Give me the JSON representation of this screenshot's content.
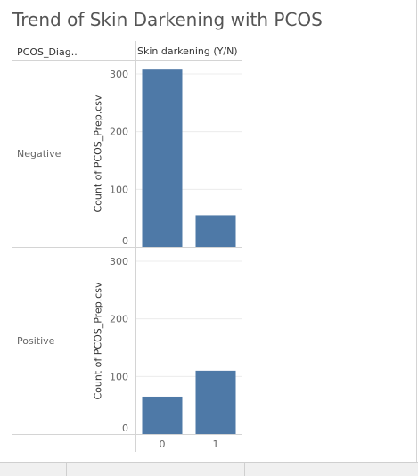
{
  "title": "Trend of Skin Darkening with PCOS",
  "header": {
    "row_dimension": "PCOS_Diag..",
    "column_dimension": "Skin darkening (Y/N)"
  },
  "panels": [
    {
      "label": "Negative",
      "axis_title": "Count of PCOS_Prep.csv"
    },
    {
      "label": "Positive",
      "axis_title": "Count of PCOS_Prep.csv"
    }
  ],
  "colors": {
    "bar": "#4e79a7",
    "gridline": "#ececec",
    "border": "#d4d4d4"
  },
  "chart_data": {
    "type": "bar",
    "title": "Trend of Skin Darkening with PCOS",
    "xlabel": "Skin darkening (Y/N)",
    "ylabel": "Count of PCOS_Prep.csv",
    "categories": [
      "0",
      "1"
    ],
    "ylim": [
      0,
      300
    ],
    "yticks": [
      0,
      100,
      200,
      300
    ],
    "panels": [
      {
        "name": "Negative",
        "values": [
          309,
          55
        ]
      },
      {
        "name": "Positive",
        "values": [
          65,
          110
        ]
      }
    ],
    "grid": true,
    "legend": "none"
  }
}
